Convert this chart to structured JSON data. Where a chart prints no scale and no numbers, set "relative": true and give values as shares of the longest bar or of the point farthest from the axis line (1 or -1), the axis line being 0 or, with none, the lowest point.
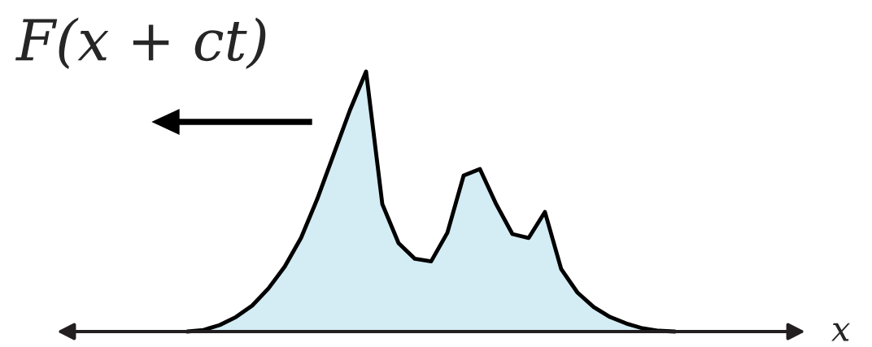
{
  "chart_data": {
    "type": "area",
    "title": "F(x + ct)",
    "xlabel": "x",
    "relative": true,
    "color": "#d4ecf3",
    "categories": [
      null,
      null,
      null,
      null,
      null,
      null,
      null,
      null,
      null,
      null,
      null,
      null,
      null,
      null,
      null,
      null,
      null,
      null,
      null,
      null,
      null,
      null,
      null,
      null,
      null,
      null,
      null,
      null,
      null,
      null,
      null
    ],
    "values": [
      0,
      0.006,
      0.025,
      0.056,
      0.1,
      0.166,
      0.25,
      0.36,
      0.51,
      0.68,
      0.85,
      1.0,
      0.49,
      0.34,
      0.28,
      0.27,
      0.38,
      0.6,
      0.625,
      0.49,
      0.375,
      0.36,
      0.46,
      0.24,
      0.15,
      0.094,
      0.056,
      0.031,
      0.0125,
      0.003,
      0
    ]
  }
}
